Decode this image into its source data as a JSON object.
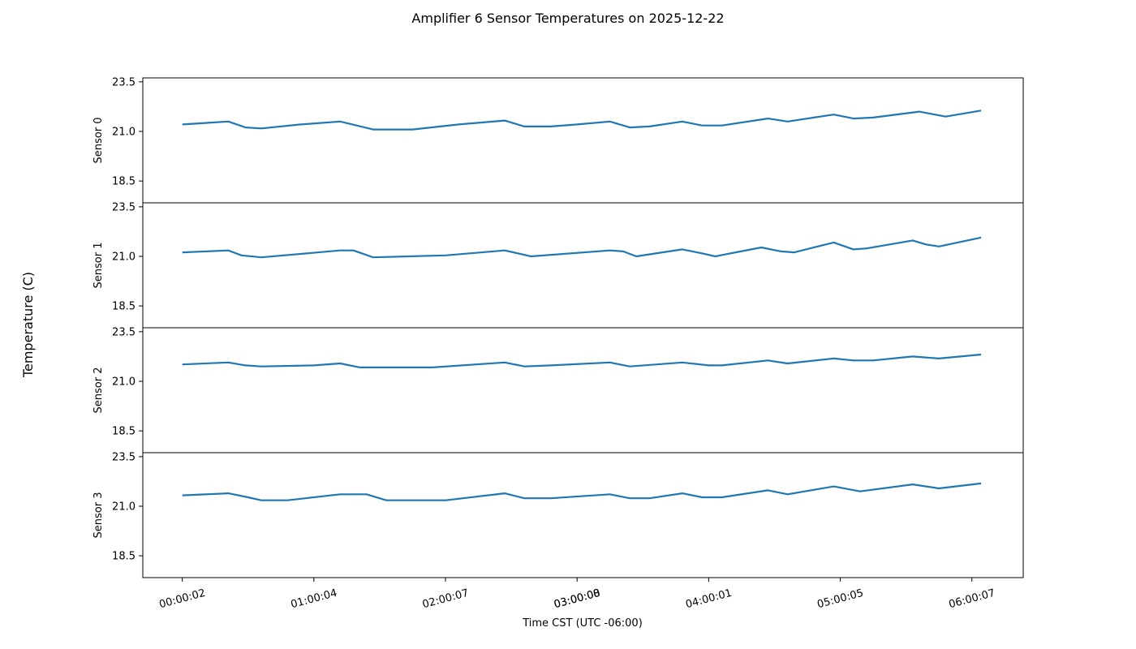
{
  "chart_data": {
    "type": "line",
    "title": "Amplifier 6 Sensor Temperatures on 2025-12-22",
    "xlabel": "Time CST (UTC -06:00)",
    "ylabel": "Temperature (C)",
    "x_ticks": [
      "00:00:02",
      "01:00:04",
      "02:00:07",
      "03:00:08",
      "04:00:01",
      "05:00:05",
      "06:00:07"
    ],
    "x_tick_hours": [
      0,
      1,
      2,
      3,
      4,
      5,
      6
    ],
    "x_tick_overlap_label": "03:00:00",
    "xlim_hours": [
      -0.3,
      6.39
    ],
    "ylim": [
      17.4,
      23.7
    ],
    "y_ticks": [
      18.5,
      21.0,
      23.5
    ],
    "y_tick_labels": [
      "18.5",
      "21.0",
      "23.5"
    ],
    "color": "#1f77b4",
    "grid": false,
    "series": [
      {
        "name": "Sensor 0",
        "x_hours": [
          0,
          0.35,
          0.48,
          0.6,
          0.9,
          1.2,
          1.45,
          1.75,
          2.1,
          2.45,
          2.6,
          2.8,
          3.0,
          3.25,
          3.4,
          3.55,
          3.8,
          3.95,
          4.1,
          4.45,
          4.6,
          4.95,
          5.1,
          5.25,
          5.6,
          5.8,
          6.07
        ],
        "values": [
          21.35,
          21.5,
          21.2,
          21.15,
          21.35,
          21.5,
          21.1,
          21.1,
          21.35,
          21.55,
          21.25,
          21.25,
          21.35,
          21.5,
          21.2,
          21.25,
          21.5,
          21.3,
          21.3,
          21.65,
          21.5,
          21.85,
          21.65,
          21.7,
          22.0,
          21.75,
          22.05
        ]
      },
      {
        "name": "Sensor 1",
        "x_hours": [
          0,
          0.35,
          0.45,
          0.6,
          1.2,
          1.3,
          1.45,
          2.0,
          2.45,
          2.55,
          2.65,
          3.25,
          3.35,
          3.45,
          3.8,
          3.95,
          4.05,
          4.4,
          4.55,
          4.65,
          4.95,
          5.1,
          5.2,
          5.55,
          5.65,
          5.75,
          6.07
        ],
        "values": [
          21.2,
          21.3,
          21.05,
          20.95,
          21.3,
          21.3,
          20.95,
          21.05,
          21.3,
          21.15,
          21.0,
          21.3,
          21.25,
          21.0,
          21.35,
          21.15,
          21.0,
          21.45,
          21.25,
          21.2,
          21.7,
          21.35,
          21.4,
          21.8,
          21.6,
          21.5,
          21.95
        ]
      },
      {
        "name": "Sensor 2",
        "x_hours": [
          0,
          0.35,
          0.48,
          0.6,
          1.0,
          1.2,
          1.35,
          1.9,
          2.45,
          2.6,
          2.8,
          3.25,
          3.4,
          3.8,
          4.0,
          4.1,
          4.45,
          4.6,
          4.95,
          5.1,
          5.25,
          5.55,
          5.75,
          6.07
        ],
        "values": [
          21.85,
          21.95,
          21.8,
          21.75,
          21.8,
          21.9,
          21.7,
          21.7,
          21.95,
          21.75,
          21.8,
          21.95,
          21.75,
          21.95,
          21.8,
          21.8,
          22.05,
          21.9,
          22.15,
          22.05,
          22.05,
          22.25,
          22.15,
          22.35
        ]
      },
      {
        "name": "Sensor 3",
        "x_hours": [
          0,
          0.35,
          0.5,
          0.6,
          0.8,
          1.2,
          1.4,
          1.55,
          2.0,
          2.45,
          2.6,
          2.8,
          3.25,
          3.4,
          3.55,
          3.8,
          3.95,
          4.1,
          4.45,
          4.6,
          4.95,
          5.15,
          5.55,
          5.75,
          6.07
        ],
        "values": [
          21.55,
          21.65,
          21.45,
          21.3,
          21.3,
          21.6,
          21.6,
          21.3,
          21.3,
          21.65,
          21.4,
          21.4,
          21.6,
          21.4,
          21.4,
          21.65,
          21.45,
          21.45,
          21.8,
          21.6,
          22.0,
          21.75,
          22.1,
          21.9,
          22.15
        ]
      }
    ]
  }
}
